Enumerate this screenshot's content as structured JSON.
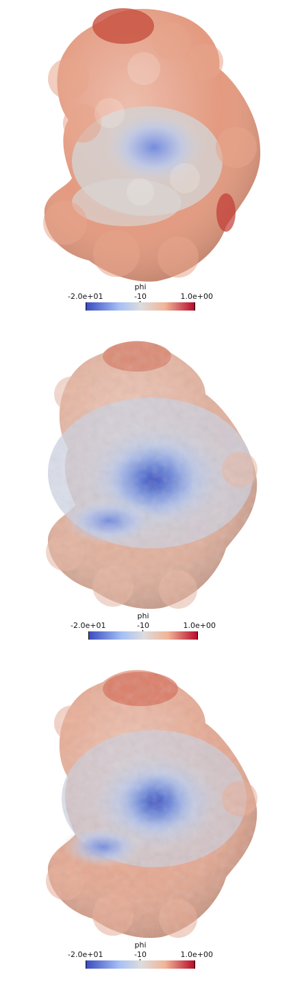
{
  "figure": {
    "panels": [
      {
        "colorbar": {
          "title": "phi",
          "min_label": "-2.0e+01",
          "mid_label": "-10",
          "max_label": "1.0e+00",
          "colors": [
            "#3b4cc0",
            "#b9d0f9",
            "#dddcdc",
            "#f4b79b",
            "#b40426"
          ]
        }
      },
      {
        "colorbar": {
          "title": "phi",
          "min_label": "-2.0e+01",
          "mid_label": "-10",
          "max_label": "1.0e+00",
          "colors": [
            "#3b4cc0",
            "#b9d0f9",
            "#dddcdc",
            "#f4b79b",
            "#b40426"
          ]
        }
      },
      {
        "colorbar": {
          "title": "phi",
          "min_label": "-2.0e+01",
          "mid_label": "-10",
          "max_label": "1.0e+00",
          "colors": [
            "#3b4cc0",
            "#b9d0f9",
            "#dddcdc",
            "#f4b79b",
            "#b40426"
          ]
        }
      }
    ]
  }
}
